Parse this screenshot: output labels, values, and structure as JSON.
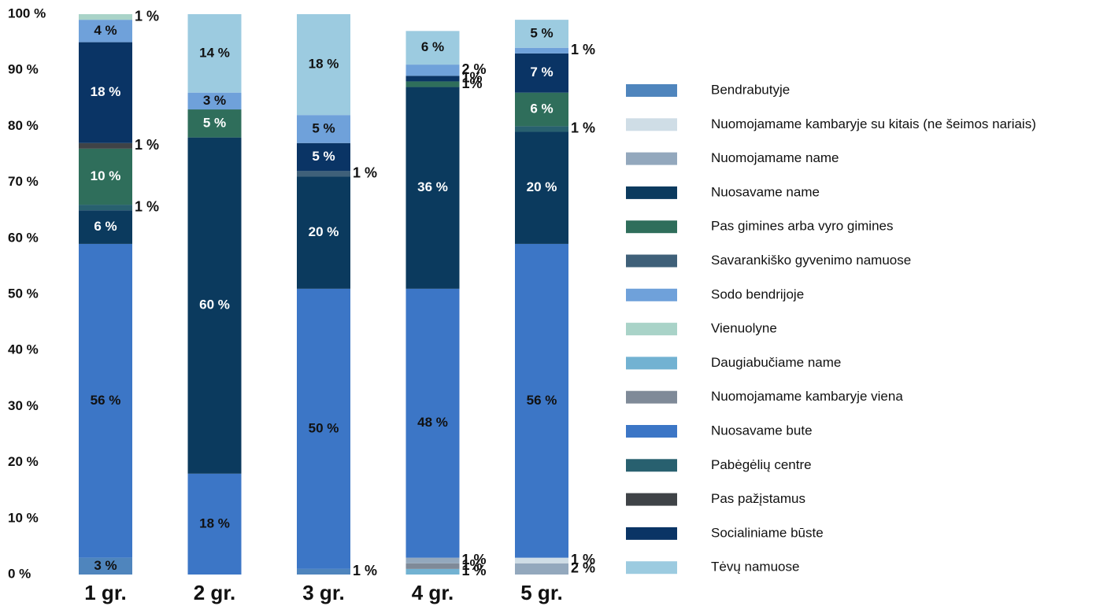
{
  "chart_data": {
    "type": "stacked_bar",
    "categories": [
      "1 gr.",
      "2 gr.",
      "3 gr.",
      "4 gr.",
      "5 gr."
    ],
    "ylim": [
      0,
      100
    ],
    "yticks": [
      {
        "value": 0,
        "label": "0 %"
      },
      {
        "value": 10,
        "label": "10 %"
      },
      {
        "value": 20,
        "label": "20 %"
      },
      {
        "value": 30,
        "label": "30 %"
      },
      {
        "value": 40,
        "label": "40 %"
      },
      {
        "value": 50,
        "label": "50 %"
      },
      {
        "value": 60,
        "label": "60 %"
      },
      {
        "value": 70,
        "label": "70 %"
      },
      {
        "value": 80,
        "label": "80 %"
      },
      {
        "value": 90,
        "label": "90 %"
      },
      {
        "value": 100,
        "label": "100 %"
      }
    ],
    "legend": "right",
    "series": [
      {
        "name": "Bendrabutyje",
        "color": "#4f85bd",
        "values": [
          3,
          null,
          1,
          null,
          null
        ],
        "value_labels": [
          "3 %",
          null,
          "1 %",
          null,
          null
        ]
      },
      {
        "name": "Nuomojamame kambaryje su kitais (ne šeimos nariais)",
        "color": "#cfdde6",
        "values": [
          null,
          null,
          null,
          null,
          1
        ],
        "value_labels": [
          null,
          null,
          null,
          null,
          "1 %"
        ]
      },
      {
        "name": "Nuomojamame name",
        "color": "#93a8bd",
        "values": [
          null,
          null,
          null,
          1,
          2
        ],
        "value_labels": [
          null,
          null,
          null,
          "1 %",
          "2 %"
        ]
      },
      {
        "name": "Nuosavame name",
        "color": "#0b3a5e",
        "values": [
          6,
          60,
          20,
          36,
          20
        ],
        "value_labels": [
          "6 %",
          "60 %",
          "20 %",
          "36 %",
          "20 %"
        ]
      },
      {
        "name": "Pas gimines arba vyro gimines",
        "color": "#2f6e5b",
        "values": [
          10,
          5,
          null,
          1,
          6
        ],
        "value_labels": [
          "10 %",
          "5 %",
          null,
          "1%",
          "6 %"
        ]
      },
      {
        "name": "Savarankiško gyvenimo namuose",
        "color": "#3f6079",
        "values": [
          null,
          null,
          1,
          null,
          null
        ],
        "value_labels": [
          null,
          null,
          "1 %",
          null,
          null
        ]
      },
      {
        "name": "Sodo bendrijoje",
        "color": "#6fa1da",
        "values": [
          4,
          3,
          5,
          2,
          1
        ],
        "value_labels": [
          "4 %",
          "3 %",
          "5 %",
          "2 %",
          "1 %"
        ]
      },
      {
        "name": "Vienuolyne",
        "color": "#a9d3c8",
        "values": [
          1,
          null,
          null,
          null,
          null
        ],
        "value_labels": [
          "1 %",
          null,
          null,
          null,
          null
        ]
      },
      {
        "name": "Daugiabučiame name",
        "color": "#72b2d2",
        "values": [
          null,
          null,
          null,
          1,
          null
        ],
        "value_labels": [
          null,
          null,
          null,
          "1 %",
          null
        ]
      },
      {
        "name": "Nuomojamame kambaryje viena",
        "color": "#7f8a98",
        "values": [
          null,
          null,
          null,
          1,
          null
        ],
        "value_labels": [
          null,
          null,
          null,
          "1%",
          null
        ]
      },
      {
        "name": "Nuosavame bute",
        "color": "#3c76c6",
        "values": [
          56,
          18,
          50,
          48,
          56
        ],
        "value_labels": [
          "56 %",
          "18 %",
          "50 %",
          "48 %",
          "56 %"
        ]
      },
      {
        "name": "Pabėgėlių centre",
        "color": "#28606f",
        "values": [
          1,
          null,
          null,
          null,
          1
        ],
        "value_labels": [
          "1 %",
          null,
          null,
          null,
          "1 %"
        ]
      },
      {
        "name": "Pas pažįstamus",
        "color": "#3f4347",
        "values": [
          1,
          null,
          null,
          null,
          null
        ],
        "value_labels": [
          "1 %",
          null,
          null,
          null,
          null
        ]
      },
      {
        "name": "Socialiniame būste",
        "color": "#0a3465",
        "values": [
          18,
          null,
          5,
          1,
          7
        ],
        "value_labels": [
          "18 %",
          null,
          "5 %",
          "1%",
          "7 %"
        ]
      },
      {
        "name": "Tėvų namuose",
        "color": "#9ccbe0",
        "values": [
          null,
          14,
          18,
          6,
          5
        ],
        "value_labels": [
          null,
          "14 %",
          "18 %",
          "6 %",
          "5 %"
        ]
      }
    ]
  }
}
